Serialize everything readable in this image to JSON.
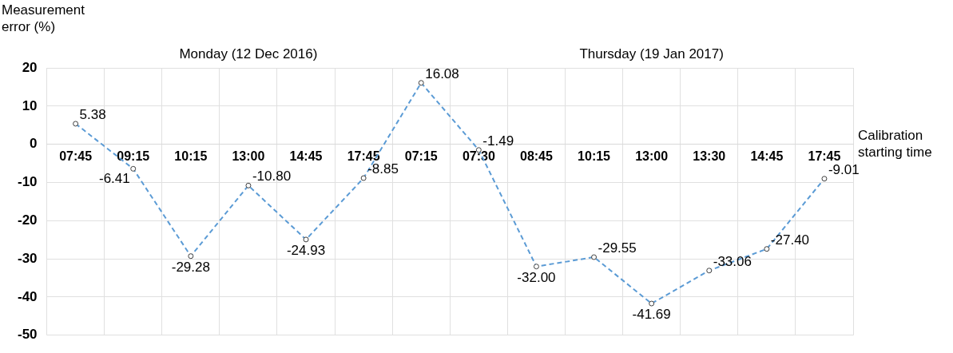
{
  "chart_data": {
    "type": "line",
    "ylabel": "Measurement error (%)",
    "xlabel": "Calibration starting time",
    "annotations": [
      "Monday (12 Dec 2016)",
      "Thursday (19 Jan 2017)"
    ],
    "categories": [
      "07:45",
      "09:15",
      "10:15",
      "13:00",
      "14:45",
      "17:45",
      "07:15",
      "07:30",
      "08:45",
      "10:15",
      "13:00",
      "13:30",
      "14:45",
      "17:45"
    ],
    "series": [
      {
        "color": "#5b9bd5",
        "values": [
          5.38,
          -6.41,
          -29.28,
          -10.8,
          -24.93,
          -8.85,
          16.08,
          -1.49,
          -32.0,
          -29.55,
          -41.69,
          -33.06,
          -27.4,
          -9.01
        ],
        "value_labels": [
          "5.38",
          "-6.41",
          "-29.28",
          "-10.80",
          "-24.93",
          "-8.85",
          "16.08",
          "-1.49",
          "-32.00",
          "-29.55",
          "-41.69",
          "-33.06",
          "-27.40",
          "-9.01"
        ]
      }
    ],
    "ylim": [
      -50,
      20
    ],
    "yticks": [
      -50,
      -40,
      -30,
      -20,
      -10,
      0,
      10,
      20
    ],
    "grid": true,
    "legend": false,
    "marker": "circle",
    "line_style": "dashed"
  }
}
